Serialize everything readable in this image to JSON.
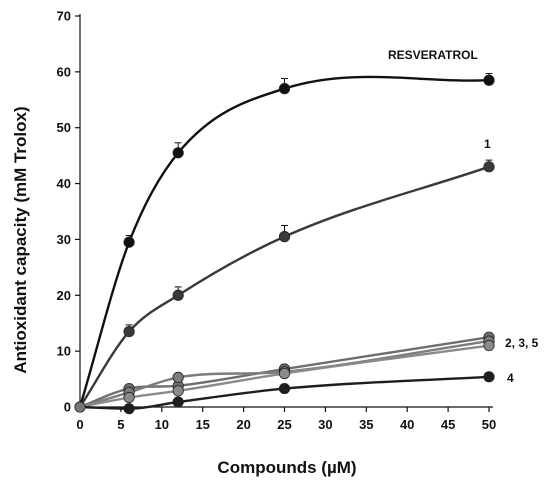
{
  "chart_data": {
    "type": "line",
    "title": "",
    "xlabel": "Compounds (µM)",
    "ylabel": "Antioxidant capacity (mM Trolox)",
    "xlim": [
      0,
      50
    ],
    "ylim": [
      0,
      70
    ],
    "xticks": [
      0,
      5,
      10,
      15,
      20,
      25,
      30,
      35,
      40,
      45,
      50
    ],
    "yticks": [
      0,
      10,
      20,
      30,
      40,
      50,
      60,
      70
    ],
    "grid": false,
    "legend": "inline labels at right end of curves",
    "series": [
      {
        "name": "RESVERATROL",
        "color": "#111111",
        "x": [
          0,
          6,
          12,
          25,
          50
        ],
        "y": [
          0,
          29.5,
          45.5,
          57,
          58.5
        ],
        "err": [
          0,
          1.2,
          1.8,
          1.8,
          1.2
        ]
      },
      {
        "name": "1",
        "color": "#3a3a3a",
        "x": [
          0,
          6,
          12,
          25,
          50
        ],
        "y": [
          0,
          13.5,
          20,
          30.5,
          43
        ],
        "err": [
          0,
          1.2,
          1.5,
          2.0,
          1.2
        ]
      },
      {
        "name": "2",
        "color": "#6e6e6e",
        "x": [
          0,
          6,
          12,
          25,
          50
        ],
        "y": [
          0,
          3.3,
          3.8,
          6.8,
          12.5
        ],
        "err": [
          0,
          0.4,
          0.4,
          0.5,
          0.5
        ]
      },
      {
        "name": "3",
        "color": "#7c7c7c",
        "x": [
          0,
          6,
          12,
          25,
          50
        ],
        "y": [
          0,
          2.6,
          5.3,
          6.3,
          11.8
        ],
        "err": [
          0,
          0.4,
          0.4,
          0.5,
          0.5
        ]
      },
      {
        "name": "5",
        "color": "#8a8a8a",
        "x": [
          0,
          6,
          12,
          25,
          50
        ],
        "y": [
          0,
          1.7,
          2.9,
          6.0,
          11.0
        ],
        "err": [
          0,
          0.4,
          0.4,
          0.5,
          0.5
        ]
      },
      {
        "name": "4",
        "color": "#1e1e1e",
        "x": [
          0,
          6,
          12,
          25,
          50
        ],
        "y": [
          0,
          -0.3,
          0.9,
          3.3,
          5.4
        ],
        "err": [
          0,
          0,
          0,
          0,
          0
        ]
      }
    ],
    "annotations": [
      "RESVERATROL",
      "1",
      "2, 3, 5",
      "4"
    ]
  }
}
